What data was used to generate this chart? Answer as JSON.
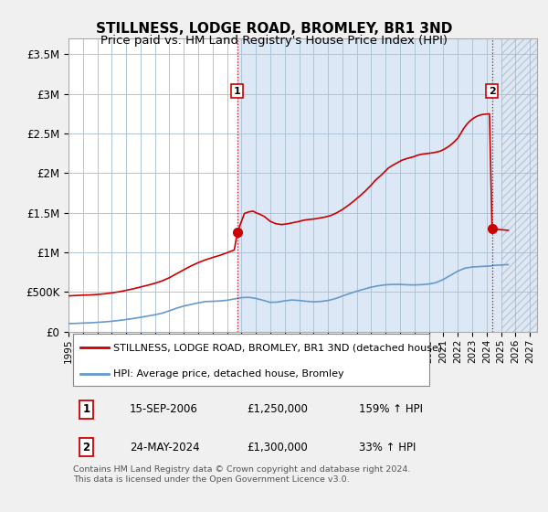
{
  "title": "STILLNESS, LODGE ROAD, BROMLEY, BR1 3ND",
  "subtitle": "Price paid vs. HM Land Registry's House Price Index (HPI)",
  "ylim": [
    0,
    3700000
  ],
  "yticks": [
    0,
    500000,
    1000000,
    1500000,
    2000000,
    2500000,
    3000000,
    3500000
  ],
  "xmin": 1995.0,
  "xmax": 2027.5,
  "background_color": "#f0f0f0",
  "plot_background": "#dce8f5",
  "plot_background_left": "#ffffff",
  "grid_color": "#b0c4d8",
  "hpi_color": "#6699cc",
  "price_color": "#cc0000",
  "hpi_data": [
    [
      1995.0,
      100000
    ],
    [
      1995.5,
      103000
    ],
    [
      1996.0,
      107000
    ],
    [
      1996.5,
      110000
    ],
    [
      1997.0,
      116000
    ],
    [
      1997.5,
      122000
    ],
    [
      1998.0,
      130000
    ],
    [
      1998.5,
      140000
    ],
    [
      1999.0,
      152000
    ],
    [
      1999.5,
      165000
    ],
    [
      2000.0,
      180000
    ],
    [
      2000.5,
      196000
    ],
    [
      2001.0,
      212000
    ],
    [
      2001.5,
      232000
    ],
    [
      2002.0,
      262000
    ],
    [
      2002.5,
      295000
    ],
    [
      2003.0,
      322000
    ],
    [
      2003.5,
      342000
    ],
    [
      2004.0,
      362000
    ],
    [
      2004.5,
      378000
    ],
    [
      2005.0,
      382000
    ],
    [
      2005.5,
      386000
    ],
    [
      2006.0,
      395000
    ],
    [
      2006.5,
      412000
    ],
    [
      2007.0,
      428000
    ],
    [
      2007.5,
      432000
    ],
    [
      2008.0,
      418000
    ],
    [
      2008.5,
      395000
    ],
    [
      2009.0,
      368000
    ],
    [
      2009.5,
      372000
    ],
    [
      2010.0,
      388000
    ],
    [
      2010.5,
      398000
    ],
    [
      2011.0,
      392000
    ],
    [
      2011.5,
      382000
    ],
    [
      2012.0,
      375000
    ],
    [
      2012.5,
      380000
    ],
    [
      2013.0,
      392000
    ],
    [
      2013.5,
      415000
    ],
    [
      2014.0,
      448000
    ],
    [
      2014.5,
      480000
    ],
    [
      2015.0,
      510000
    ],
    [
      2015.5,
      535000
    ],
    [
      2016.0,
      560000
    ],
    [
      2016.5,
      578000
    ],
    [
      2017.0,
      590000
    ],
    [
      2017.5,
      595000
    ],
    [
      2018.0,
      595000
    ],
    [
      2018.5,
      590000
    ],
    [
      2019.0,
      588000
    ],
    [
      2019.5,
      592000
    ],
    [
      2020.0,
      600000
    ],
    [
      2020.5,
      618000
    ],
    [
      2021.0,
      658000
    ],
    [
      2021.5,
      710000
    ],
    [
      2022.0,
      762000
    ],
    [
      2022.5,
      800000
    ],
    [
      2023.0,
      815000
    ],
    [
      2023.5,
      820000
    ],
    [
      2024.0,
      825000
    ],
    [
      2024.38,
      830000
    ],
    [
      2024.5,
      835000
    ],
    [
      2025.0,
      840000
    ],
    [
      2025.5,
      845000
    ]
  ],
  "price_data": [
    [
      1995.0,
      450000
    ],
    [
      1995.5,
      455000
    ],
    [
      1996.0,
      460000
    ],
    [
      1996.5,
      462000
    ],
    [
      1997.0,
      468000
    ],
    [
      1997.5,
      476000
    ],
    [
      1998.0,
      488000
    ],
    [
      1998.5,
      502000
    ],
    [
      1999.0,
      520000
    ],
    [
      1999.5,
      540000
    ],
    [
      2000.0,
      562000
    ],
    [
      2000.5,
      585000
    ],
    [
      2001.0,
      610000
    ],
    [
      2001.5,
      640000
    ],
    [
      2002.0,
      680000
    ],
    [
      2002.5,
      730000
    ],
    [
      2003.0,
      780000
    ],
    [
      2003.5,
      828000
    ],
    [
      2004.0,
      870000
    ],
    [
      2004.5,
      905000
    ],
    [
      2005.0,
      935000
    ],
    [
      2005.5,
      962000
    ],
    [
      2006.0,
      995000
    ],
    [
      2006.5,
      1030000
    ],
    [
      2006.71,
      1250000
    ],
    [
      2007.2,
      1490000
    ],
    [
      2007.5,
      1510000
    ],
    [
      2007.8,
      1520000
    ],
    [
      2008.0,
      1500000
    ],
    [
      2008.3,
      1478000
    ],
    [
      2008.6,
      1450000
    ],
    [
      2009.0,
      1390000
    ],
    [
      2009.4,
      1360000
    ],
    [
      2009.8,
      1350000
    ],
    [
      2010.2,
      1360000
    ],
    [
      2010.6,
      1375000
    ],
    [
      2011.0,
      1390000
    ],
    [
      2011.3,
      1405000
    ],
    [
      2011.7,
      1415000
    ],
    [
      2012.0,
      1420000
    ],
    [
      2012.4,
      1432000
    ],
    [
      2012.8,
      1445000
    ],
    [
      2013.2,
      1465000
    ],
    [
      2013.6,
      1498000
    ],
    [
      2014.0,
      1540000
    ],
    [
      2014.4,
      1592000
    ],
    [
      2014.8,
      1648000
    ],
    [
      2015.2,
      1710000
    ],
    [
      2015.6,
      1775000
    ],
    [
      2016.0,
      1850000
    ],
    [
      2016.3,
      1912000
    ],
    [
      2016.7,
      1975000
    ],
    [
      2017.0,
      2030000
    ],
    [
      2017.2,
      2065000
    ],
    [
      2017.5,
      2100000
    ],
    [
      2017.8,
      2130000
    ],
    [
      2018.1,
      2160000
    ],
    [
      2018.4,
      2180000
    ],
    [
      2018.7,
      2195000
    ],
    [
      2019.0,
      2210000
    ],
    [
      2019.2,
      2225000
    ],
    [
      2019.5,
      2238000
    ],
    [
      2019.8,
      2245000
    ],
    [
      2020.1,
      2252000
    ],
    [
      2020.4,
      2260000
    ],
    [
      2020.8,
      2278000
    ],
    [
      2021.1,
      2305000
    ],
    [
      2021.4,
      2340000
    ],
    [
      2021.7,
      2385000
    ],
    [
      2022.0,
      2440000
    ],
    [
      2022.2,
      2498000
    ],
    [
      2022.4,
      2560000
    ],
    [
      2022.6,
      2610000
    ],
    [
      2022.8,
      2650000
    ],
    [
      2023.0,
      2680000
    ],
    [
      2023.2,
      2705000
    ],
    [
      2023.4,
      2722000
    ],
    [
      2023.6,
      2735000
    ],
    [
      2023.8,
      2742000
    ],
    [
      2024.0,
      2745000
    ],
    [
      2024.2,
      2748000
    ],
    [
      2024.38,
      1300000
    ],
    [
      2024.5,
      1295000
    ],
    [
      2025.0,
      1285000
    ],
    [
      2025.5,
      1278000
    ]
  ],
  "sale1_x": 2006.71,
  "sale1_y": 1250000,
  "sale2_x": 2024.38,
  "sale2_y": 1300000,
  "sale1_vline_x": 2006.71,
  "sale2_vline_x": 2024.38,
  "hatch_xmin": 2025.0,
  "hatch_xmax": 2027.5,
  "shade_xmin": 2006.71,
  "shade_xmax": 2027.5,
  "legend_label1": "STILLNESS, LODGE ROAD, BROMLEY, BR1 3ND (detached house)",
  "legend_label2": "HPI: Average price, detached house, Bromley",
  "table_rows": [
    {
      "num": "1",
      "date": "15-SEP-2006",
      "price": "£1,250,000",
      "hpi": "159% ↑ HPI"
    },
    {
      "num": "2",
      "date": "24-MAY-2024",
      "price": "£1,300,000",
      "hpi": "33% ↑ HPI"
    }
  ],
  "footer": "Contains HM Land Registry data © Crown copyright and database right 2024.\nThis data is licensed under the Open Government Licence v3.0."
}
